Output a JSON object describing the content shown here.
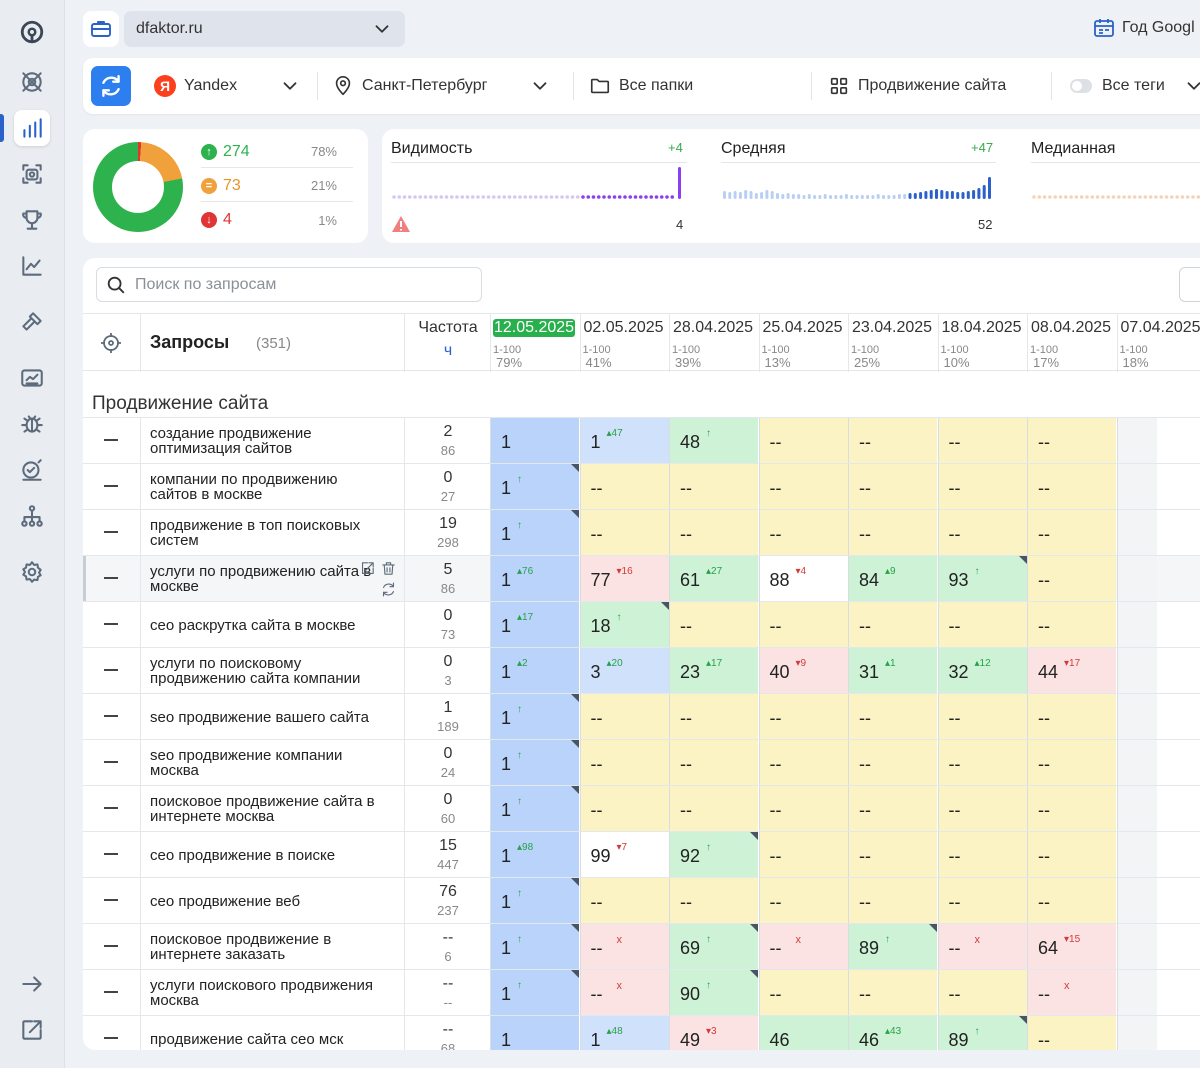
{
  "header": {
    "project": "dfaktor.ru",
    "period": "Год Googl"
  },
  "filters": {
    "engine": "Yandex",
    "engine_letter": "Я",
    "region": "Санкт-Петербург",
    "folders": "Все папки",
    "group": "Продвижение сайта",
    "tags": "Все теги"
  },
  "summary": {
    "up": {
      "value": "274",
      "pct": "78%"
    },
    "same": {
      "value": "73",
      "pct": "21%"
    },
    "down": {
      "value": "4",
      "pct": "1%"
    }
  },
  "metrics": [
    {
      "title": "Видимость",
      "delta": "+4",
      "value": "4"
    },
    {
      "title": "Средняя",
      "delta": "+47",
      "value": "52"
    },
    {
      "title": "Медианная"
    }
  ],
  "search": {
    "placeholder": "Поиск по запросам"
  },
  "table": {
    "queries_label": "Запросы",
    "queries_count": "(351)",
    "freq_label": "Частота",
    "freq_sub": "ч",
    "range_label": "1-100",
    "dates": [
      {
        "date": "12.05.2025",
        "pct": "79%",
        "current": true
      },
      {
        "date": "02.05.2025",
        "pct": "41%"
      },
      {
        "date": "28.04.2025",
        "pct": "39%"
      },
      {
        "date": "25.04.2025",
        "pct": "13%"
      },
      {
        "date": "23.04.2025",
        "pct": "25%"
      },
      {
        "date": "18.04.2025",
        "pct": "10%"
      },
      {
        "date": "08.04.2025",
        "pct": "17%"
      },
      {
        "date": "07.04.2025",
        "pct": "18%"
      }
    ],
    "group_title": "Продвижение сайта",
    "rows": [
      {
        "q": "создание продвижение оптимизация сайтов",
        "f1": "2",
        "f2": "86",
        "cells": [
          [
            "1",
            "",
            "",
            ""
          ],
          [
            "1",
            "+47",
            "up",
            ""
          ],
          [
            "48",
            "↑",
            "up",
            ""
          ],
          [
            "--",
            "",
            "",
            ""
          ],
          [
            "--",
            "",
            "",
            ""
          ],
          [
            "--",
            "",
            "",
            ""
          ],
          [
            "--",
            "",
            "",
            ""
          ]
        ]
      },
      {
        "q": "компании по продвижению сайтов в москве",
        "f1": "0",
        "f2": "27",
        "cells": [
          [
            "1",
            "↑",
            "up",
            "t"
          ],
          [
            "--",
            "",
            "",
            ""
          ],
          [
            "--",
            "",
            "",
            ""
          ],
          [
            "--",
            "",
            "",
            ""
          ],
          [
            "--",
            "",
            "",
            ""
          ],
          [
            "--",
            "",
            "",
            ""
          ],
          [
            "--",
            "",
            "",
            ""
          ]
        ]
      },
      {
        "q": "продвижение в топ поисковых систем",
        "f1": "19",
        "f2": "298",
        "cells": [
          [
            "1",
            "↑",
            "up",
            "t"
          ],
          [
            "--",
            "",
            "",
            ""
          ],
          [
            "--",
            "",
            "",
            ""
          ],
          [
            "--",
            "",
            "",
            ""
          ],
          [
            "--",
            "",
            "",
            ""
          ],
          [
            "--",
            "",
            "",
            ""
          ],
          [
            "--",
            "",
            "",
            ""
          ]
        ]
      },
      {
        "q": "услуги по продвижению сайта в москве",
        "f1": "5",
        "f2": "86",
        "cells": [
          [
            "1",
            "+76",
            "up",
            ""
          ],
          [
            "77",
            "-16",
            "dn",
            ""
          ],
          [
            "61",
            "+27",
            "up",
            ""
          ],
          [
            "88",
            "-4",
            "dn",
            ""
          ],
          [
            "84",
            "+9",
            "up",
            ""
          ],
          [
            "93",
            "↑",
            "up",
            "t"
          ],
          [
            "--",
            "",
            "",
            ""
          ]
        ]
      },
      {
        "q": "сео раскрутка сайта в москве",
        "f1": "0",
        "f2": "73",
        "cells": [
          [
            "1",
            "+17",
            "up",
            ""
          ],
          [
            "18",
            "↑",
            "up",
            "t"
          ],
          [
            "--",
            "",
            "",
            ""
          ],
          [
            "--",
            "",
            "",
            ""
          ],
          [
            "--",
            "",
            "",
            ""
          ],
          [
            "--",
            "",
            "",
            ""
          ],
          [
            "--",
            "",
            "",
            ""
          ]
        ]
      },
      {
        "q": "услуги по поисковому продвижению сайта компании",
        "f1": "0",
        "f2": "3",
        "cells": [
          [
            "1",
            "+2",
            "up",
            ""
          ],
          [
            "3",
            "+20",
            "up",
            ""
          ],
          [
            "23",
            "+17",
            "up",
            ""
          ],
          [
            "40",
            "-9",
            "dn",
            ""
          ],
          [
            "31",
            "+1",
            "up",
            ""
          ],
          [
            "32",
            "+12",
            "up",
            ""
          ],
          [
            "44",
            "-17",
            "dn",
            ""
          ]
        ]
      },
      {
        "q": "seo продвижение вашего сайта",
        "f1": "1",
        "f2": "189",
        "cells": [
          [
            "1",
            "↑",
            "up",
            "t"
          ],
          [
            "--",
            "",
            "",
            ""
          ],
          [
            "--",
            "",
            "",
            ""
          ],
          [
            "--",
            "",
            "",
            ""
          ],
          [
            "--",
            "",
            "",
            ""
          ],
          [
            "--",
            "",
            "",
            ""
          ],
          [
            "--",
            "",
            "",
            ""
          ]
        ]
      },
      {
        "q": "seo продвижение компании москва",
        "f1": "0",
        "f2": "24",
        "cells": [
          [
            "1",
            "↑",
            "up",
            "t"
          ],
          [
            "--",
            "",
            "",
            ""
          ],
          [
            "--",
            "",
            "",
            ""
          ],
          [
            "--",
            "",
            "",
            ""
          ],
          [
            "--",
            "",
            "",
            ""
          ],
          [
            "--",
            "",
            "",
            ""
          ],
          [
            "--",
            "",
            "",
            ""
          ]
        ]
      },
      {
        "q": "поисковое продвижение сайта в интернете москва",
        "f1": "0",
        "f2": "60",
        "cells": [
          [
            "1",
            "↑",
            "up",
            "t"
          ],
          [
            "--",
            "",
            "",
            ""
          ],
          [
            "--",
            "",
            "",
            ""
          ],
          [
            "--",
            "",
            "",
            ""
          ],
          [
            "--",
            "",
            "",
            ""
          ],
          [
            "--",
            "",
            "",
            ""
          ],
          [
            "--",
            "",
            "",
            ""
          ]
        ]
      },
      {
        "q": "сео продвижение в поиске",
        "f1": "15",
        "f2": "447",
        "cells": [
          [
            "1",
            "+98",
            "up",
            ""
          ],
          [
            "99",
            "-7",
            "dn",
            ""
          ],
          [
            "92",
            "↑",
            "up",
            "t"
          ],
          [
            "--",
            "",
            "",
            ""
          ],
          [
            "--",
            "",
            "",
            ""
          ],
          [
            "--",
            "",
            "",
            ""
          ],
          [
            "--",
            "",
            "",
            ""
          ]
        ]
      },
      {
        "q": "сео продвижение веб",
        "f1": "76",
        "f2": "237",
        "cells": [
          [
            "1",
            "↑",
            "up",
            "t"
          ],
          [
            "--",
            "",
            "",
            ""
          ],
          [
            "--",
            "",
            "",
            ""
          ],
          [
            "--",
            "",
            "",
            ""
          ],
          [
            "--",
            "",
            "",
            ""
          ],
          [
            "--",
            "",
            "",
            ""
          ],
          [
            "--",
            "",
            "",
            ""
          ]
        ]
      },
      {
        "q": "поисковое продвижение в интернете заказать",
        "f1": "--",
        "f2": "6",
        "cells": [
          [
            "1",
            "↑",
            "up",
            "t"
          ],
          [
            "--",
            "x",
            "x",
            ""
          ],
          [
            "69",
            "↑",
            "up",
            "t"
          ],
          [
            "--",
            "x",
            "x",
            ""
          ],
          [
            "89",
            "↑",
            "up",
            "t"
          ],
          [
            "--",
            "x",
            "x",
            ""
          ],
          [
            "64",
            "-15",
            "dn",
            ""
          ]
        ]
      },
      {
        "q": "услуги поискового продвижения москва",
        "f1": "--",
        "f2": "--",
        "cells": [
          [
            "1",
            "↑",
            "up",
            "t"
          ],
          [
            "--",
            "x",
            "x",
            ""
          ],
          [
            "90",
            "↑",
            "up",
            "t"
          ],
          [
            "--",
            "",
            "",
            ""
          ],
          [
            "--",
            "",
            "",
            ""
          ],
          [
            "--",
            "",
            "",
            ""
          ],
          [
            "--",
            "x",
            "x",
            ""
          ]
        ]
      },
      {
        "q": "продвижение сайта сео мск",
        "f1": "--",
        "f2": "68",
        "cells": [
          [
            "1",
            "",
            "",
            ""
          ],
          [
            "1",
            "+48",
            "up",
            ""
          ],
          [
            "49",
            "-3",
            "dn",
            ""
          ],
          [
            "46",
            "",
            "",
            ""
          ],
          [
            "46",
            "+43",
            "up",
            ""
          ],
          [
            "89",
            "↑",
            "up",
            "t"
          ],
          [
            "--",
            "",
            "",
            ""
          ]
        ]
      }
    ]
  }
}
